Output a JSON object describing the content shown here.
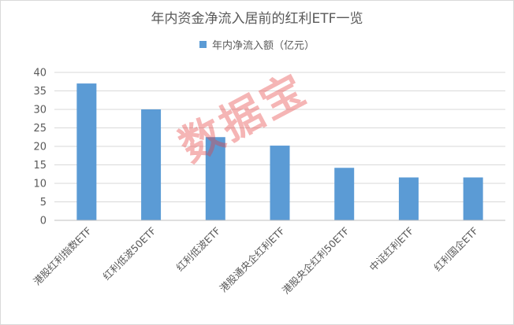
{
  "chart_data": {
    "type": "bar",
    "title": "年内资金净流入居前的红利ETF一览",
    "legend": {
      "position": "top",
      "label": "年内净流入额（亿元）"
    },
    "categories": [
      "港股红利指数ETF",
      "红利低波50ETF",
      "红利低波ETF",
      "港股通央企红利ETF",
      "港股央企红利50ETF",
      "中证红利ETF",
      "红利国企ETF"
    ],
    "series": [
      {
        "name": "年内净流入额（亿元）",
        "values": [
          37.0,
          30.0,
          22.5,
          20.2,
          14.2,
          11.6,
          11.6
        ]
      }
    ],
    "ylim": [
      0,
      40
    ],
    "yticks": [
      0,
      5,
      10,
      15,
      20,
      25,
      30,
      35,
      40
    ],
    "xlabel": "",
    "ylabel": "",
    "grid": true,
    "bar_color": "#5b9bd5"
  },
  "watermark": "数据宝"
}
